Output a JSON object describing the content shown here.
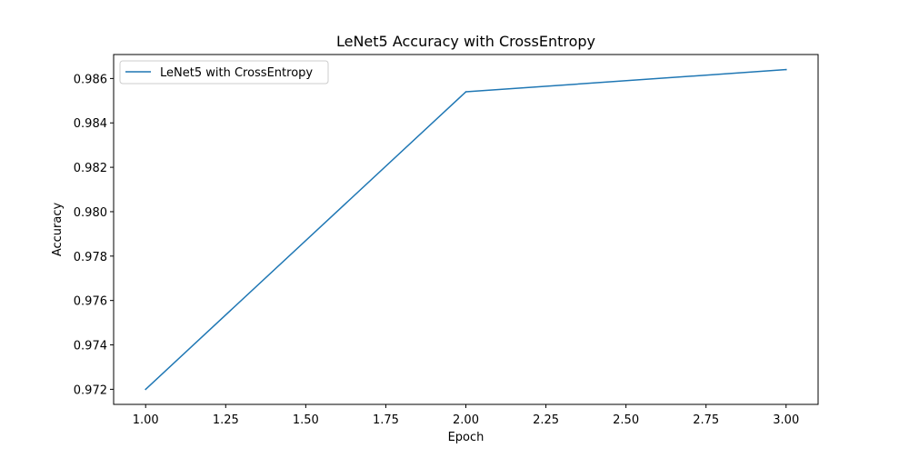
{
  "chart_data": {
    "type": "line",
    "title": "LeNet5 Accuracy with CrossEntropy",
    "xlabel": "Epoch",
    "ylabel": "Accuracy",
    "x": [
      1.0,
      2.0,
      3.0
    ],
    "series": [
      {
        "name": "LeNet5 with CrossEntropy",
        "values": [
          0.972,
          0.9854,
          0.9864
        ],
        "color": "#1f77b4"
      }
    ],
    "xlim": [
      0.9,
      3.1
    ],
    "ylim": [
      0.97132,
      0.98708
    ],
    "xticks": [
      1.0,
      1.25,
      1.5,
      1.75,
      2.0,
      2.25,
      2.5,
      2.75,
      3.0
    ],
    "xtick_labels": [
      "1.00",
      "1.25",
      "1.50",
      "1.75",
      "2.00",
      "2.25",
      "2.50",
      "2.75",
      "3.00"
    ],
    "yticks": [
      0.972,
      0.974,
      0.976,
      0.978,
      0.98,
      0.982,
      0.984,
      0.986
    ],
    "ytick_labels": [
      "0.972",
      "0.974",
      "0.976",
      "0.978",
      "0.980",
      "0.982",
      "0.984",
      "0.986"
    ],
    "grid": false,
    "legend_position": "top-left"
  }
}
